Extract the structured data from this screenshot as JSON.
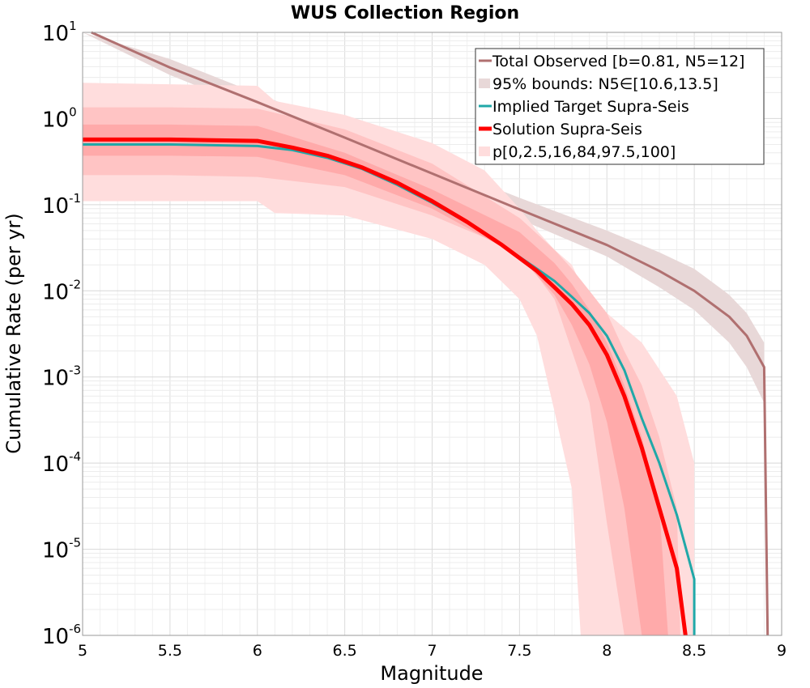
{
  "chart_data": {
    "type": "line",
    "title": "WUS Collection Region",
    "xlabel": "Magnitude",
    "ylabel": "Cumulative Rate (per yr)",
    "xlim": [
      5,
      9
    ],
    "ylim": [
      1e-06,
      10
    ],
    "yscale": "log",
    "grid": true,
    "legend_position": "top-right",
    "x_ticks": [
      "5",
      "5.5",
      "6",
      "6.5",
      "7",
      "7.5",
      "8",
      "8.5",
      "9"
    ],
    "y_ticks": [
      {
        "base": "10",
        "exp": "1",
        "value": 10
      },
      {
        "base": "10",
        "exp": "0",
        "value": 1
      },
      {
        "base": "10",
        "exp": "-1",
        "value": 0.1
      },
      {
        "base": "10",
        "exp": "-2",
        "value": 0.01
      },
      {
        "base": "10",
        "exp": "-3",
        "value": 0.001
      },
      {
        "base": "10",
        "exp": "-4",
        "value": 0.0001
      },
      {
        "base": "10",
        "exp": "-5",
        "value": 1e-05
      },
      {
        "base": "10",
        "exp": "-6",
        "value": 1e-06
      }
    ],
    "legend": [
      {
        "label": "Total Observed [b=0.81, N5=12]",
        "kind": "line",
        "color": "#b07070"
      },
      {
        "label": "95% bounds: N5∈[10.6,13.5]",
        "kind": "patch",
        "color": "#e8d8d8"
      },
      {
        "label": "Implied Target Supra-Seis",
        "kind": "line",
        "color": "#20a8a8"
      },
      {
        "label": "Solution Supra-Seis",
        "kind": "thickline",
        "color": "#ff0000"
      },
      {
        "label": "p[0,2.5,16,84,97.5,100]",
        "kind": "patch",
        "color": "#ffdddd"
      }
    ],
    "series": [
      {
        "name": "Total Observed [b=0.81, N5=12]",
        "color": "#b07070",
        "x": [
          5.05,
          5.5,
          6.0,
          6.5,
          7.0,
          7.5,
          8.0,
          8.3,
          8.5,
          8.7,
          8.8,
          8.9,
          8.92
        ],
        "y": [
          10.0,
          3.9,
          1.55,
          0.6,
          0.23,
          0.088,
          0.034,
          0.017,
          0.01,
          0.005,
          0.003,
          0.0013,
          1e-06
        ]
      },
      {
        "name": "Implied Target Supra-Seis",
        "color": "#20a8a8",
        "x": [
          5.0,
          5.5,
          6.0,
          6.2,
          6.4,
          6.6,
          6.8,
          7.0,
          7.2,
          7.4,
          7.6,
          7.7,
          7.8,
          7.9,
          8.0,
          8.1,
          8.2,
          8.3,
          8.4,
          8.5,
          8.5
        ],
        "y": [
          0.5,
          0.5,
          0.48,
          0.43,
          0.35,
          0.26,
          0.17,
          0.105,
          0.062,
          0.034,
          0.018,
          0.013,
          0.0085,
          0.0055,
          0.003,
          0.0012,
          0.00033,
          0.0001,
          2.5e-05,
          4.5e-06,
          1e-06
        ]
      },
      {
        "name": "Solution Supra-Seis",
        "color": "#ff0000",
        "x": [
          5.0,
          5.5,
          6.0,
          6.2,
          6.4,
          6.6,
          6.8,
          7.0,
          7.2,
          7.4,
          7.6,
          7.7,
          7.8,
          7.9,
          8.0,
          8.1,
          8.2,
          8.3,
          8.4,
          8.45
        ],
        "y": [
          0.57,
          0.57,
          0.55,
          0.46,
          0.37,
          0.27,
          0.18,
          0.11,
          0.063,
          0.034,
          0.017,
          0.011,
          0.007,
          0.004,
          0.0018,
          0.0006,
          0.00015,
          3e-05,
          6e-06,
          1e-06
        ]
      }
    ],
    "bands": [
      {
        "name": "95% bounds: N5∈[10.6,13.5]",
        "color": "#e8d8d8",
        "x": [
          5.0,
          5.5,
          6.0,
          6.5,
          7.0,
          7.5,
          8.0,
          8.3,
          8.5,
          8.7,
          8.8,
          8.9
        ],
        "lower": [
          10.0,
          3.2,
          1.25,
          0.48,
          0.18,
          0.068,
          0.025,
          0.011,
          0.006,
          0.0025,
          0.0013,
          0.0005
        ],
        "upper": [
          10.0,
          4.9,
          1.95,
          0.78,
          0.3,
          0.12,
          0.05,
          0.028,
          0.018,
          0.009,
          0.0055,
          0.0025
        ]
      },
      {
        "name": "p[0,2.5,16,84,97.5,100] outer",
        "color": "#ffdddd",
        "x": [
          5.0,
          5.5,
          6.0,
          6.1,
          6.5,
          7.0,
          7.3,
          7.5,
          7.6,
          7.7,
          7.8,
          7.85,
          8.0,
          8.2,
          8.4,
          8.5
        ],
        "lower": [
          0.11,
          0.11,
          0.11,
          0.08,
          0.075,
          0.04,
          0.02,
          0.008,
          0.003,
          0.0004,
          5e-05,
          1e-06,
          1e-06,
          1e-06,
          1e-06,
          1e-06
        ],
        "upper": [
          2.6,
          2.5,
          2.4,
          1.6,
          1.1,
          0.52,
          0.25,
          0.09,
          0.05,
          0.03,
          0.02,
          0.012,
          0.0055,
          0.0025,
          0.0006,
          0.0001
        ]
      },
      {
        "name": "p[0,2.5,16,84,97.5,100] middle",
        "color": "#ffc4c4",
        "x": [
          5.0,
          5.5,
          6.0,
          6.5,
          7.0,
          7.5,
          7.7,
          7.8,
          7.9,
          8.0,
          8.1,
          8.2,
          8.3,
          8.4,
          8.42
        ],
        "lower": [
          0.22,
          0.22,
          0.21,
          0.16,
          0.075,
          0.028,
          0.008,
          0.002,
          0.0005,
          2e-05,
          1e-06,
          1e-06,
          1e-06,
          1e-06,
          1e-06
        ],
        "upper": [
          1.35,
          1.35,
          1.3,
          0.75,
          0.3,
          0.07,
          0.03,
          0.018,
          0.01,
          0.0055,
          0.002,
          0.0008,
          0.0002,
          3e-05,
          1e-06
        ]
      },
      {
        "name": "p[0,2.5,16,84,97.5,100] inner",
        "color": "#ffaaaa",
        "x": [
          5.0,
          5.5,
          6.0,
          6.5,
          7.0,
          7.5,
          7.7,
          7.8,
          7.9,
          8.0,
          8.1,
          8.2,
          8.3,
          8.35
        ],
        "lower": [
          0.37,
          0.37,
          0.36,
          0.22,
          0.09,
          0.025,
          0.009,
          0.004,
          0.0014,
          0.0003,
          3e-05,
          1e-06,
          1e-06,
          1e-06
        ],
        "upper": [
          0.85,
          0.85,
          0.82,
          0.4,
          0.15,
          0.048,
          0.021,
          0.012,
          0.006,
          0.0025,
          0.0008,
          0.0002,
          3e-05,
          1e-06
        ]
      }
    ]
  }
}
